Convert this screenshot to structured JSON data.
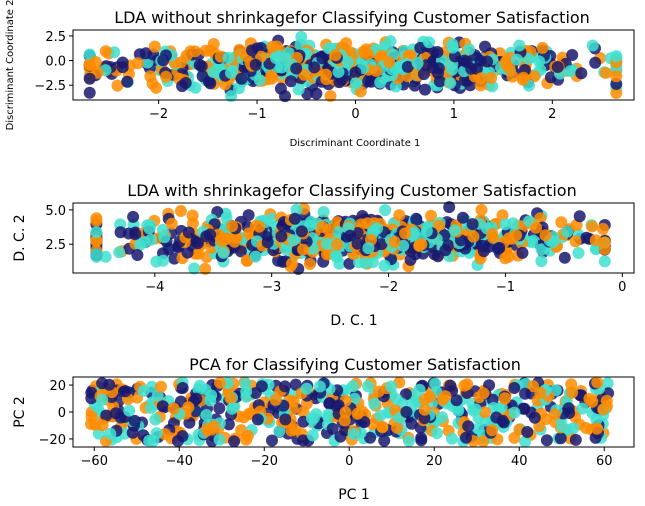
{
  "colors": {
    "navy": "#191970",
    "turquoise": "#40E0D0",
    "darkorange": "#FF8C00"
  },
  "chart_data": [
    {
      "type": "scatter",
      "title": "LDA without shrinkagefor Classifying Customer Satisfaction",
      "xlabel": "Discriminant Coordinate 1",
      "ylabel": "Discriminant Coordinate 2",
      "xlim": [
        -2.87,
        2.83
      ],
      "ylim": [
        -4.0,
        3.1
      ],
      "xticks": [
        "−2",
        "−1",
        "0",
        "1",
        "2"
      ],
      "xtick_values": [
        -2,
        -1,
        0,
        1,
        2
      ],
      "yticks": [
        "2.5",
        "0.0",
        "−2.5"
      ],
      "ytick_values": [
        2.5,
        0.0,
        -2.5
      ],
      "x_range": [
        -2.7,
        2.65
      ],
      "y_range": [
        -3.6,
        2.4
      ],
      "point_count": 900,
      "series": [
        {
          "name": "navy",
          "color": "#191970"
        },
        {
          "name": "turquoise",
          "color": "#40E0D0"
        },
        {
          "name": "darkorange",
          "color": "#FF8C00"
        }
      ]
    },
    {
      "type": "scatter",
      "title": "LDA with shrinkagefor Classifying Customer Satisfaction",
      "xlabel": "D. C. 1",
      "ylabel": "D. C. 2",
      "xlim": [
        -4.7,
        0.1
      ],
      "ylim": [
        0.4,
        5.5
      ],
      "xticks": [
        "−4",
        "−3",
        "−2",
        "−1",
        "0"
      ],
      "xtick_values": [
        -4,
        -3,
        -2,
        -1,
        0
      ],
      "yticks": [
        "5.0",
        "2.5"
      ],
      "ytick_values": [
        5.0,
        2.5
      ],
      "x_range": [
        -4.5,
        -0.15
      ],
      "y_range": [
        0.7,
        5.2
      ],
      "point_count": 900,
      "series": [
        {
          "name": "navy",
          "color": "#191970"
        },
        {
          "name": "turquoise",
          "color": "#40E0D0"
        },
        {
          "name": "darkorange",
          "color": "#FF8C00"
        }
      ]
    },
    {
      "type": "scatter",
      "title": "PCA for Classifying Customer Satisfaction",
      "xlabel": "PC 1",
      "ylabel": "PC 2",
      "xlim": [
        -65,
        67
      ],
      "ylim": [
        -26,
        26
      ],
      "xticks": [
        "−60",
        "−40",
        "−20",
        "0",
        "20",
        "40",
        "60"
      ],
      "xtick_values": [
        -60,
        -40,
        -20,
        0,
        20,
        40,
        60
      ],
      "yticks": [
        "20",
        "0",
        "−20"
      ],
      "ytick_values": [
        20,
        0,
        -20
      ],
      "x_range": [
        -61,
        61
      ],
      "y_range": [
        -22,
        22
      ],
      "point_count": 600,
      "series": [
        {
          "name": "navy",
          "color": "#191970"
        },
        {
          "name": "turquoise",
          "color": "#40E0D0"
        },
        {
          "name": "darkorange",
          "color": "#FF8C00"
        }
      ]
    }
  ]
}
